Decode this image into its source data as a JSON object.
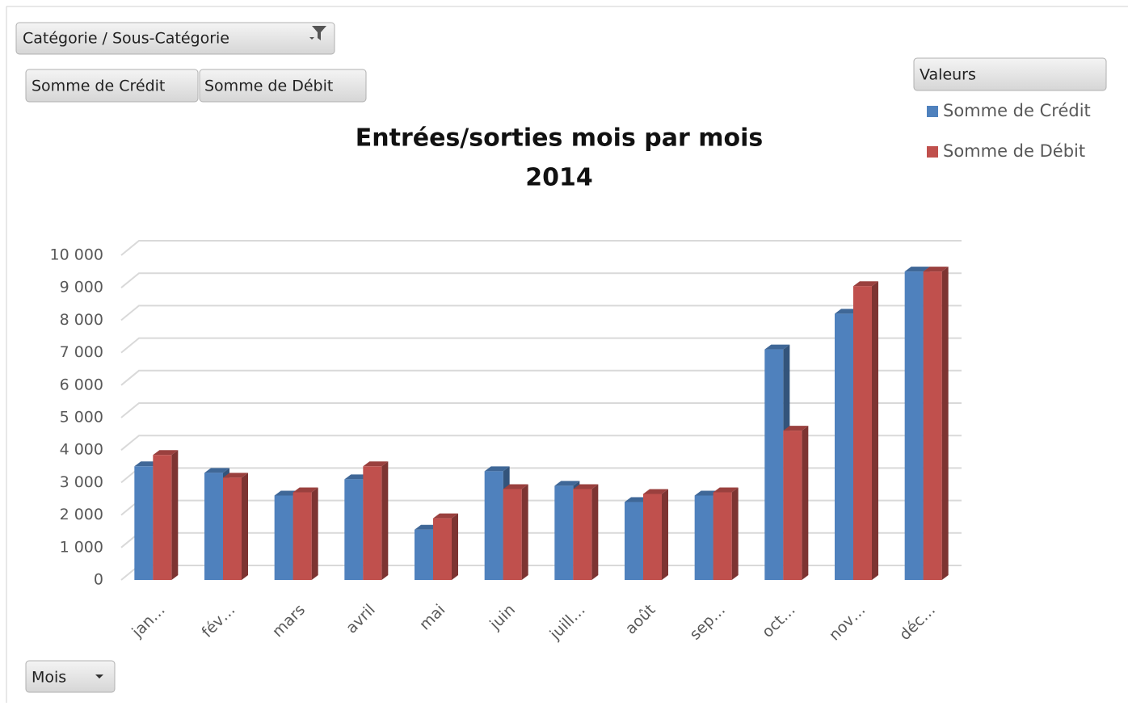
{
  "chart_data": {
    "type": "bar3d",
    "title": "Entrées/sorties mois par mois",
    "subtitle": "2014",
    "filter_field": "Catégorie / Sous-Catégorie",
    "value_fields": [
      "Somme de Crédit",
      "Somme de Débit"
    ],
    "legend_title": "Valeurs",
    "axis_field": "Mois",
    "categories": [
      "jan…",
      "fév…",
      "mars",
      "avril",
      "mai",
      "juin",
      "juill…",
      "août",
      "sep…",
      "oct…",
      "nov…",
      "déc…"
    ],
    "series": [
      {
        "name": "Somme de Crédit",
        "color": "#4f81bd",
        "values": [
          3500,
          3300,
          2600,
          3100,
          1550,
          3350,
          2900,
          2400,
          2600,
          7100,
          8200,
          9500
        ]
      },
      {
        "name": "Somme de Débit",
        "color": "#c0504d",
        "values": [
          3850,
          3150,
          2700,
          3500,
          1900,
          2800,
          2800,
          2650,
          2700,
          4600,
          9050,
          9500
        ]
      }
    ],
    "ylim": [
      0,
      10000
    ],
    "yticks": [
      0,
      {
        "value": 1000,
        "label": "1 000"
      },
      {
        "value": 2000,
        "label": "2 000"
      },
      {
        "value": 3000,
        "label": "3 000"
      },
      {
        "value": 4000,
        "label": "4 000"
      },
      {
        "value": 5000,
        "label": "5 000"
      },
      {
        "value": 6000,
        "label": "6 000"
      },
      {
        "value": 7000,
        "label": "7 000"
      },
      {
        "value": 8000,
        "label": "8 000"
      },
      {
        "value": 9000,
        "label": "9 000"
      },
      {
        "value": 10000,
        "label": "10 000"
      }
    ],
    "grid": true,
    "legend": "right"
  }
}
